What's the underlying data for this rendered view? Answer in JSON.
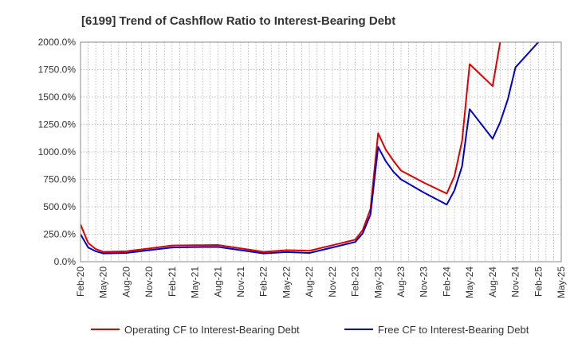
{
  "chart_data": {
    "type": "line",
    "title": "[6199]  Trend of Cashflow Ratio to Interest-Bearing Debt",
    "xlabel": "",
    "ylabel": "",
    "x_ticks": [
      "Feb-20",
      "May-20",
      "Aug-20",
      "Nov-20",
      "Feb-21",
      "May-21",
      "Aug-21",
      "Nov-21",
      "Feb-22",
      "May-22",
      "Aug-22",
      "Nov-22",
      "Feb-23",
      "May-23",
      "Aug-23",
      "Nov-23",
      "Feb-24",
      "May-24",
      "Aug-24",
      "Nov-24",
      "Feb-25",
      "May-25"
    ],
    "y_ticks": [
      "0.0%",
      "250.0%",
      "500.0%",
      "750.0%",
      "1000.0%",
      "1250.0%",
      "1500.0%",
      "1750.0%",
      "2000.0%"
    ],
    "ylim": [
      0,
      2000
    ],
    "grid": true,
    "legend_position": "bottom",
    "series": [
      {
        "name": "Operating CF to Interest-Bearing Debt",
        "color": "#e00000",
        "points": [
          [
            "Feb-20",
            340
          ],
          [
            "Mar-20",
            170
          ],
          [
            "Apr-20",
            115
          ],
          [
            "May-20",
            90
          ],
          [
            "Aug-20",
            95
          ],
          [
            "Nov-20",
            120
          ],
          [
            "Feb-21",
            148
          ],
          [
            "May-21",
            150
          ],
          [
            "Aug-21",
            152
          ],
          [
            "Nov-21",
            122
          ],
          [
            "Feb-22",
            90
          ],
          [
            "May-22",
            105
          ],
          [
            "Aug-22",
            100
          ],
          [
            "Nov-22",
            150
          ],
          [
            "Feb-23",
            200
          ],
          [
            "Mar-23",
            290
          ],
          [
            "Apr-23",
            480
          ],
          [
            "May-23",
            1170
          ],
          [
            "Jun-23",
            1020
          ],
          [
            "Jul-23",
            920
          ],
          [
            "Aug-23",
            830
          ],
          [
            "Nov-23",
            720
          ],
          [
            "Feb-24",
            620
          ],
          [
            "Mar-24",
            780
          ],
          [
            "Apr-24",
            1100
          ],
          [
            "May-24",
            1800
          ],
          [
            "Aug-24",
            1600
          ],
          [
            "Sep-24",
            2000
          ]
        ]
      },
      {
        "name": "Free CF to Interest-Bearing Debt",
        "color": "#0000cc",
        "points": [
          [
            "Feb-20",
            250
          ],
          [
            "Mar-20",
            130
          ],
          [
            "Apr-20",
            95
          ],
          [
            "May-20",
            75
          ],
          [
            "Aug-20",
            80
          ],
          [
            "Nov-20",
            105
          ],
          [
            "Feb-21",
            130
          ],
          [
            "May-21",
            133
          ],
          [
            "Aug-21",
            135
          ],
          [
            "Nov-21",
            105
          ],
          [
            "Feb-22",
            75
          ],
          [
            "May-22",
            88
          ],
          [
            "Aug-22",
            80
          ],
          [
            "Nov-22",
            130
          ],
          [
            "Feb-23",
            180
          ],
          [
            "Mar-23",
            260
          ],
          [
            "Apr-23",
            430
          ],
          [
            "May-23",
            1045
          ],
          [
            "Jun-23",
            915
          ],
          [
            "Jul-23",
            820
          ],
          [
            "Aug-23",
            750
          ],
          [
            "Nov-23",
            630
          ],
          [
            "Feb-24",
            520
          ],
          [
            "Mar-24",
            650
          ],
          [
            "Apr-24",
            870
          ],
          [
            "May-24",
            1390
          ],
          [
            "Aug-24",
            1120
          ],
          [
            "Sep-24",
            1270
          ],
          [
            "Oct-24",
            1480
          ],
          [
            "Nov-24",
            1770
          ],
          [
            "Feb-25",
            2000
          ]
        ]
      }
    ]
  }
}
